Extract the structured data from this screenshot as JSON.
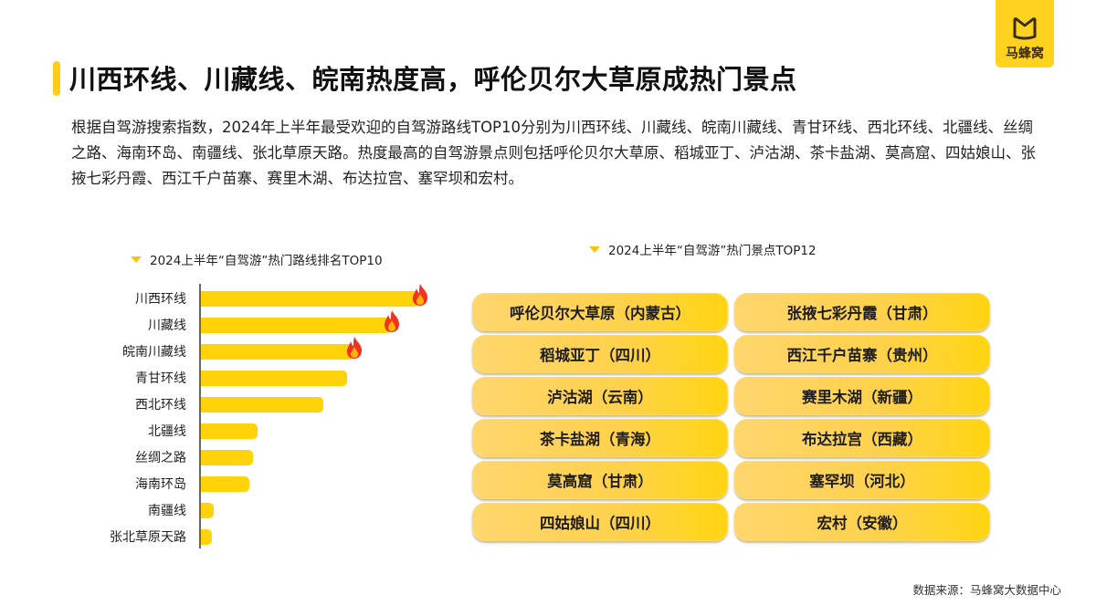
{
  "brand": {
    "logo_text": "马蜂窝",
    "logo_icon": "crown-m-icon",
    "color": "#ffd21f"
  },
  "header": {
    "title": "川西环线、川藏线、皖南热度高，呼伦贝尔大草原成热门景点",
    "accent_color": "#ffcc1a"
  },
  "description": "根据自驾游搜索指数，2024年上半年最受欢迎的自驾游路线TOP10分别为川西环线、川藏线、皖南川藏线、青甘环线、西北环线、北疆线、丝绸之路、海南环岛、南疆线、张北草原天路。热度最高的自驾游景点则包括呼伦贝尔大草原、稻城亚丁、泸沽湖、茶卡盐湖、莫高窟、四姑娘山、张掖七彩丹霞、西江千户苗寨、赛里木湖、布达拉宫、塞罕坝和宏村。",
  "routes_chart": {
    "title": "2024上半年“自驾游”热门路线排名TOP10",
    "marker_icon": "triangle-down-icon",
    "hot_icon": "fire-icon"
  },
  "spots_panel": {
    "title": "2024上半年“自驾游”热门景点TOP12",
    "marker_icon": "triangle-down-icon",
    "spots": [
      "呼伦贝尔大草原（内蒙古）",
      "张掖七彩丹霞（甘肃）",
      "稻城亚丁（四川）",
      "西江千户苗寨（贵州）",
      "泸沽湖（云南）",
      "赛里木湖（新疆）",
      "茶卡盐湖（青海）",
      "布达拉宫（西藏）",
      "莫高窟（甘肃）",
      "塞罕坝（河北）",
      "四姑娘山（四川）",
      "宏村（安徽）"
    ]
  },
  "chart_data": {
    "type": "bar",
    "orientation": "horizontal",
    "title": "2024上半年“自驾游”热门路线排名TOP10",
    "categories": [
      "川西环线",
      "川藏线",
      "皖南川藏线",
      "青甘环线",
      "西北环线",
      "北疆线",
      "丝绸之路",
      "海南环岛",
      "南疆线",
      "张北草原天路"
    ],
    "values": [
      100,
      87,
      70,
      67,
      56,
      26,
      24,
      22,
      6,
      5
    ],
    "value_unit": "relative search index (no axis shown, estimated from bar length, max=100)",
    "highlighted_top3": [
      "川西环线",
      "川藏线",
      "皖南川藏线"
    ],
    "xlabel": "",
    "ylabel": "",
    "grid": false,
    "legend": null,
    "bar_color": "#ffd20a"
  },
  "footer": {
    "source": "数据来源：马蜂窝大数据中心"
  }
}
